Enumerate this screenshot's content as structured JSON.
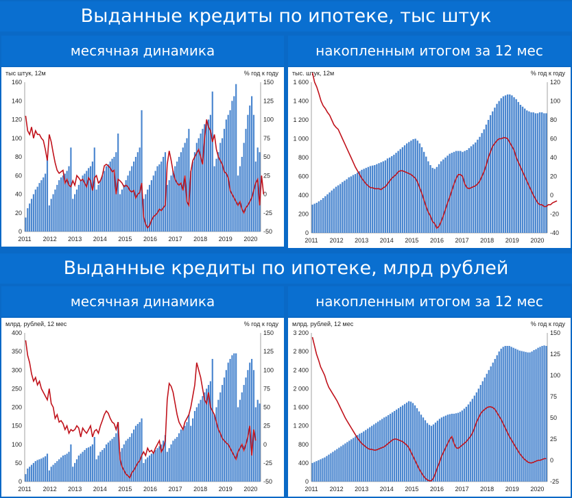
{
  "title_count": "Выданные кредиты по ипотеке, тыс штук",
  "title_money": "Выданные кредиты по ипотеке, млрд рублей",
  "sub_monthly": "месячная динамика",
  "sub_cumulative": "накопленным итогом за 12 мес",
  "colors": {
    "bar": "#4a86cf",
    "line": "#c0111a",
    "band": "#0a6fd0"
  },
  "chart_data": [
    {
      "type": "bar",
      "id": "count-monthly",
      "ylabel_left": "тыс штук, 12м",
      "ylabel_right": "% год к году",
      "ylim": [
        0,
        160
      ],
      "y_ticks": [
        "0",
        "20",
        "40",
        "60",
        "80",
        "100",
        "120",
        "140",
        "160"
      ],
      "y2lim": [
        -50,
        150
      ],
      "y2_ticks": [
        "-50",
        "-25",
        "0",
        "25",
        "50",
        "75",
        "100",
        "125",
        "150"
      ],
      "x_ticks": [
        "2011",
        "2012",
        "2013",
        "2014",
        "2015",
        "2016",
        "2017",
        "2018",
        "2019",
        "2020"
      ],
      "series": [
        {
          "kind": "bar",
          "axis": "left",
          "values": [
            15,
            25,
            30,
            35,
            40,
            45,
            48,
            52,
            55,
            58,
            62,
            78,
            28,
            35,
            40,
            45,
            50,
            55,
            58,
            60,
            62,
            65,
            70,
            90,
            35,
            40,
            45,
            50,
            55,
            60,
            62,
            65,
            68,
            70,
            75,
            90,
            45,
            50,
            55,
            60,
            65,
            70,
            72,
            75,
            78,
            80,
            85,
            105,
            40,
            45,
            50,
            55,
            60,
            65,
            70,
            75,
            80,
            85,
            90,
            130,
            35,
            40,
            45,
            50,
            55,
            60,
            65,
            70,
            72,
            75,
            80,
            85,
            50,
            55,
            60,
            65,
            70,
            75,
            80,
            85,
            90,
            95,
            100,
            110,
            65,
            75,
            85,
            95,
            100,
            105,
            110,
            115,
            118,
            120,
            125,
            150,
            70,
            78,
            85,
            95,
            100,
            110,
            120,
            125,
            130,
            140,
            145,
            158,
            60,
            70,
            80,
            95,
            110,
            125,
            135,
            145,
            125,
            75,
            90,
            85
          ]
        },
        {
          "kind": "line",
          "axis": "right",
          "values": [
            105,
            85,
            80,
            90,
            75,
            85,
            80,
            80,
            75,
            72,
            60,
            45,
            80,
            70,
            55,
            42,
            32,
            28,
            30,
            32,
            15,
            20,
            12,
            10,
            18,
            12,
            25,
            22,
            18,
            20,
            15,
            10,
            22,
            18,
            5,
            22,
            25,
            15,
            18,
            25,
            38,
            40,
            38,
            35,
            30,
            32,
            0,
            20,
            18,
            15,
            10,
            12,
            10,
            5,
            3,
            5,
            -5,
            0,
            2,
            15,
            -30,
            -40,
            -45,
            -42,
            -35,
            -30,
            -28,
            -25,
            -20,
            -22,
            -18,
            -15,
            40,
            58,
            45,
            30,
            20,
            15,
            12,
            15,
            5,
            25,
            -10,
            -15,
            30,
            45,
            50,
            55,
            60,
            50,
            40,
            75,
            100,
            90,
            85,
            70,
            80,
            60,
            50,
            45,
            40,
            30,
            28,
            22,
            5,
            0,
            -5,
            -10,
            -15,
            -10,
            -20,
            -25,
            -18,
            -15,
            -10,
            -5,
            5,
            15,
            20,
            -15,
            25,
            0
          ]
        }
      ]
    },
    {
      "type": "bar",
      "id": "count-cumulative",
      "ylabel_left": "тыс. штук, 12м",
      "ylabel_right": "% год к году",
      "ylim": [
        0,
        1600
      ],
      "y_ticks": [
        "0",
        "200",
        "400",
        "600",
        "800",
        "1 000",
        "1 200",
        "1 400",
        "1 600"
      ],
      "y2lim": [
        -40,
        120
      ],
      "y2_ticks": [
        "-40",
        "-20",
        "0",
        "20",
        "40",
        "60",
        "80",
        "100",
        "120"
      ],
      "x_ticks": [
        "2011",
        "2012",
        "2013",
        "2014",
        "2015",
        "2016",
        "2017",
        "2018",
        "2019",
        "2020"
      ],
      "series": [
        {
          "kind": "bar",
          "axis": "left",
          "values": [
            300,
            310,
            320,
            335,
            350,
            370,
            390,
            410,
            430,
            450,
            470,
            490,
            505,
            520,
            540,
            555,
            570,
            590,
            600,
            615,
            625,
            640,
            655,
            670,
            680,
            690,
            700,
            710,
            715,
            720,
            730,
            740,
            750,
            760,
            770,
            790,
            800,
            815,
            830,
            850,
            870,
            890,
            910,
            930,
            950,
            965,
            980,
            995,
            1000,
            980,
            950,
            910,
            860,
            810,
            760,
            720,
            690,
            680,
            700,
            730,
            760,
            780,
            800,
            820,
            840,
            850,
            860,
            870,
            870,
            870,
            860,
            870,
            880,
            900,
            920,
            940,
            960,
            990,
            1020,
            1060,
            1100,
            1150,
            1200,
            1250,
            1290,
            1330,
            1370,
            1400,
            1430,
            1450,
            1460,
            1470,
            1470,
            1460,
            1440,
            1420,
            1390,
            1360,
            1340,
            1320,
            1300,
            1290,
            1280,
            1280,
            1270,
            1270,
            1280,
            1280,
            1270,
            1270
          ]
        },
        {
          "kind": "line",
          "axis": "right",
          "values": [
            130,
            120,
            115,
            108,
            100,
            95,
            92,
            88,
            85,
            80,
            75,
            72,
            70,
            65,
            60,
            55,
            50,
            45,
            40,
            35,
            30,
            26,
            22,
            18,
            15,
            12,
            10,
            8,
            8,
            7,
            7,
            7,
            6,
            8,
            9,
            12,
            15,
            18,
            20,
            22,
            25,
            26,
            26,
            25,
            24,
            23,
            22,
            20,
            18,
            14,
            8,
            2,
            -5,
            -12,
            -18,
            -22,
            -28,
            -30,
            -35,
            -33,
            -28,
            -22,
            -15,
            -8,
            -2,
            5,
            12,
            18,
            22,
            22,
            20,
            12,
            8,
            7,
            8,
            9,
            10,
            12,
            15,
            20,
            25,
            32,
            40,
            46,
            52,
            55,
            58,
            60,
            60,
            61,
            61,
            60,
            56,
            52,
            48,
            40,
            35,
            30,
            25,
            20,
            15,
            10,
            5,
            0,
            -4,
            -8,
            -10,
            -10,
            -12,
            -12,
            -10,
            -10,
            -8,
            -7,
            -6
          ]
        }
      ]
    },
    {
      "type": "bar",
      "id": "money-monthly",
      "ylabel_left": "млрд. рублей, 12 мес",
      "ylabel_right": "% год к году",
      "ylim": [
        0,
        400
      ],
      "y_ticks": [
        "0",
        "50",
        "100",
        "150",
        "200",
        "250",
        "300",
        "350",
        "400"
      ],
      "y2lim": [
        -50,
        150
      ],
      "y2_ticks": [
        "-50",
        "-25",
        "0",
        "25",
        "50",
        "75",
        "100",
        "125",
        "150"
      ],
      "x_ticks": [
        "2011",
        "2012",
        "2013",
        "2014",
        "2015",
        "2016",
        "2017",
        "2018",
        "2019",
        "2020"
      ],
      "series": [
        {
          "kind": "bar",
          "axis": "left",
          "values": [
            20,
            35,
            40,
            45,
            50,
            55,
            58,
            60,
            62,
            65,
            68,
            75,
            30,
            40,
            45,
            50,
            55,
            60,
            65,
            70,
            72,
            75,
            80,
            100,
            40,
            50,
            60,
            70,
            75,
            80,
            85,
            90,
            92,
            95,
            100,
            120,
            60,
            70,
            80,
            85,
            90,
            100,
            105,
            110,
            115,
            120,
            130,
            160,
            80,
            90,
            100,
            110,
            115,
            120,
            130,
            140,
            150,
            155,
            160,
            170,
            50,
            60,
            65,
            70,
            75,
            80,
            85,
            90,
            95,
            100,
            110,
            125,
            80,
            90,
            100,
            110,
            115,
            120,
            130,
            140,
            145,
            150,
            160,
            180,
            150,
            170,
            190,
            200,
            210,
            220,
            230,
            240,
            250,
            260,
            270,
            330,
            180,
            200,
            220,
            240,
            260,
            280,
            300,
            320,
            330,
            340,
            345,
            345,
            200,
            220,
            240,
            260,
            280,
            300,
            320,
            330,
            300,
            200,
            220,
            210
          ]
        },
        {
          "kind": "line",
          "axis": "right",
          "values": [
            140,
            120,
            110,
            95,
            85,
            90,
            80,
            85,
            75,
            70,
            65,
            60,
            75,
            55,
            50,
            35,
            40,
            30,
            32,
            28,
            20,
            25,
            15,
            20,
            18,
            20,
            25,
            22,
            10,
            22,
            18,
            15,
            20,
            25,
            10,
            18,
            20,
            15,
            25,
            32,
            40,
            45,
            42,
            35,
            30,
            28,
            20,
            30,
            -20,
            -30,
            -35,
            -40,
            -42,
            -45,
            -38,
            -35,
            -30,
            -25,
            -22,
            -15,
            -10,
            -15,
            -5,
            -10,
            -8,
            -12,
            -5,
            0,
            5,
            -10,
            -5,
            5,
            60,
            82,
            78,
            70,
            55,
            40,
            30,
            25,
            20,
            30,
            35,
            40,
            50,
            65,
            80,
            110,
            100,
            90,
            75,
            60,
            55,
            70,
            50,
            45,
            40,
            30,
            20,
            15,
            8,
            5,
            2,
            0,
            -5,
            -10,
            -15,
            -20,
            -10,
            -5,
            0,
            -8,
            0,
            10,
            25,
            -15,
            20,
            5
          ]
        }
      ]
    },
    {
      "type": "bar",
      "id": "money-cumulative",
      "ylabel_left": "млрд. рублей, 12 мес",
      "ylabel_right": "% год к году",
      "ylim": [
        0,
        3200
      ],
      "y_ticks": [
        "0",
        "400",
        "800",
        "1 200",
        "1 600",
        "2 000",
        "2 400",
        "2 800",
        "3 200"
      ],
      "y2lim": [
        -25,
        150
      ],
      "y2_ticks": [
        "-25",
        "0",
        "25",
        "50",
        "75",
        "100",
        "125",
        "150"
      ],
      "x_ticks": [
        "2011",
        "2012",
        "2013",
        "2014",
        "2015",
        "2016",
        "2017",
        "2018",
        "2019",
        "2020"
      ],
      "series": [
        {
          "kind": "bar",
          "axis": "left",
          "values": [
            400,
            420,
            440,
            460,
            480,
            500,
            520,
            550,
            580,
            610,
            640,
            670,
            700,
            730,
            760,
            790,
            820,
            850,
            880,
            910,
            940,
            970,
            1000,
            1030,
            1050,
            1080,
            1110,
            1140,
            1170,
            1200,
            1230,
            1260,
            1290,
            1320,
            1350,
            1380,
            1400,
            1430,
            1460,
            1490,
            1520,
            1550,
            1580,
            1610,
            1640,
            1670,
            1700,
            1730,
            1720,
            1690,
            1640,
            1580,
            1510,
            1440,
            1380,
            1320,
            1260,
            1220,
            1200,
            1230,
            1270,
            1310,
            1350,
            1380,
            1400,
            1420,
            1440,
            1450,
            1460,
            1460,
            1470,
            1480,
            1500,
            1530,
            1570,
            1610,
            1660,
            1720,
            1780,
            1850,
            1920,
            2000,
            2080,
            2160,
            2240,
            2320,
            2400,
            2480,
            2560,
            2640,
            2720,
            2800,
            2860,
            2900,
            2920,
            2920,
            2920,
            2900,
            2880,
            2860,
            2840,
            2820,
            2810,
            2800,
            2790,
            2780,
            2780,
            2800,
            2830,
            2850,
            2880,
            2900,
            2920,
            2930,
            2920
          ]
        },
        {
          "kind": "line",
          "axis": "right",
          "values": [
            145,
            135,
            125,
            118,
            110,
            105,
            100,
            92,
            86,
            82,
            78,
            74,
            70,
            65,
            60,
            55,
            50,
            46,
            42,
            38,
            34,
            30,
            26,
            23,
            20,
            18,
            16,
            14,
            13,
            13,
            12,
            12,
            13,
            14,
            15,
            16,
            18,
            20,
            22,
            24,
            25,
            25,
            24,
            23,
            22,
            20,
            18,
            15,
            10,
            5,
            0,
            -5,
            -10,
            -14,
            -18,
            -21,
            -23,
            -24,
            -24,
            -21,
            -15,
            -8,
            -2,
            5,
            10,
            15,
            20,
            25,
            28,
            20,
            15,
            14,
            16,
            18,
            20,
            22,
            25,
            28,
            32,
            38,
            45,
            50,
            55,
            58,
            60,
            62,
            63,
            63,
            62,
            60,
            56,
            52,
            48,
            43,
            38,
            33,
            28,
            24,
            20,
            16,
            12,
            8,
            5,
            2,
            0,
            -2,
            -3,
            -3,
            -2,
            -1,
            0,
            0,
            1,
            2,
            2
          ]
        }
      ]
    }
  ]
}
